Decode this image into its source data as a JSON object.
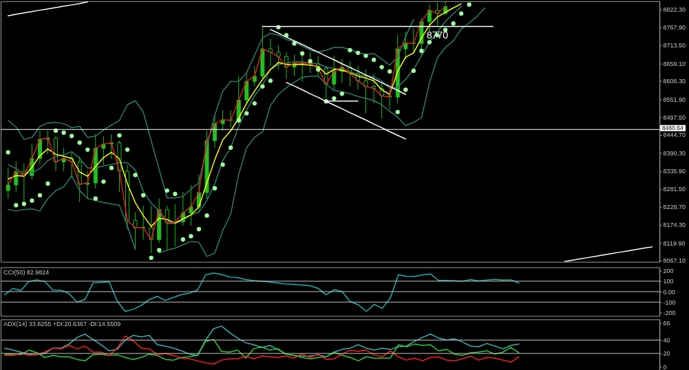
{
  "chart_data": [
    {
      "type": "candlestick",
      "categories": [
        null,
        null,
        null,
        null,
        null,
        null,
        null,
        null,
        null,
        null,
        null,
        null,
        null,
        null,
        null,
        null,
        null,
        null,
        null,
        null,
        null,
        null,
        null,
        null,
        null,
        null,
        null,
        null,
        null,
        null,
        null,
        null,
        null,
        null,
        null,
        null,
        null,
        null,
        null,
        null,
        null,
        null,
        null,
        null,
        null,
        null,
        null,
        null,
        null,
        null,
        null,
        null,
        null,
        null,
        null,
        null,
        null,
        null,
        null,
        null,
        null,
        null,
        null,
        null,
        null,
        null,
        null,
        null,
        null,
        null,
        null,
        null,
        null,
        null,
        null,
        null,
        null,
        null,
        null,
        null,
        null,
        null
      ],
      "ylim": [
        8063,
        8846
      ],
      "yticks": [
        {
          "value": 8822.3,
          "label": "8822.30"
        },
        {
          "value": 8767.9,
          "label": "8767.90"
        },
        {
          "value": 8713.5,
          "label": "8713.50"
        },
        {
          "value": 8659.1,
          "label": "8659.10"
        },
        {
          "value": 8606.3,
          "label": "8606.30"
        },
        {
          "value": 8551.9,
          "label": "8551.90"
        },
        {
          "value": 8497.5,
          "label": "8497.50"
        },
        {
          "value": 8444.7,
          "label": "8444.70"
        },
        {
          "value": 8390.3,
          "label": "8390.30"
        },
        {
          "value": 8335.9,
          "label": "8335.90"
        },
        {
          "value": 8281.5,
          "label": "8281.50"
        },
        {
          "value": 8228.7,
          "label": "8228.70"
        },
        {
          "value": 8174.3,
          "label": "8174.30"
        },
        {
          "value": 8119.9,
          "label": "8119.90"
        },
        {
          "value": 8067.1,
          "label": "8067.10"
        }
      ],
      "tick_labels": "y",
      "ref_lines": [
        {
          "axis": "y",
          "value": 8460.64,
          "label": "8460.64",
          "color": "#ffffff"
        }
      ],
      "series": [
        {
          "type": "candlestick",
          "color": "#20c020",
          "ohlc": [
            [
              8277,
              8345,
              8253,
              8294
            ],
            [
              8294,
              8365,
              8273,
              8335
            ],
            [
              8335,
              8359,
              8243,
              8322
            ],
            [
              8322,
              8417,
              8310,
              8374
            ],
            [
              8374,
              8457,
              8355,
              8431
            ],
            [
              8431,
              8457,
              8386,
              8435
            ],
            [
              8435,
              8441,
              8335,
              8363
            ],
            [
              8363,
              8406,
              8335,
              8374
            ],
            [
              8374,
              8392,
              8314,
              8363
            ],
            [
              8363,
              8380,
              8243,
              8296
            ],
            [
              8296,
              8335,
              8253,
              8300
            ],
            [
              8300,
              8447,
              8284,
              8404
            ],
            [
              8404,
              8441,
              8355,
              8417
            ],
            [
              8417,
              8447,
              8372,
              8421
            ],
            [
              8421,
              8427,
              8273,
              8335
            ],
            [
              8335,
              8355,
              8161,
              8188
            ],
            [
              8188,
              8212,
              8100,
              8165
            ],
            [
              8167,
              8232,
              8130,
              8165
            ],
            [
              8165,
              8232,
              8089,
              8130
            ],
            [
              8130,
              8253,
              8120,
              8220
            ],
            [
              8220,
              8232,
              8100,
              8181
            ],
            [
              8181,
              8237,
              8110,
              8183
            ],
            [
              8183,
              8273,
              8171,
              8210
            ],
            [
              8210,
              8294,
              8171,
              8228
            ],
            [
              8228,
              8325,
              8212,
              8271
            ],
            [
              8271,
              8457,
              8253,
              8427
            ],
            [
              8427,
              8502,
              8406,
              8478
            ],
            [
              8478,
              8519,
              8457,
              8490
            ],
            [
              8490,
              8519,
              8468,
              8488
            ],
            [
              8488,
              8621,
              8478,
              8549
            ],
            [
              8549,
              8631,
              8539,
              8605
            ],
            [
              8605,
              8652,
              8590,
              8621
            ],
            [
              8621,
              8770,
              8611,
              8703
            ],
            [
              8703,
              8734,
              8652,
              8693
            ],
            [
              8693,
              8713,
              8641,
              8680
            ],
            [
              8680,
              8693,
              8611,
              8648
            ],
            [
              8648,
              8686,
              8621,
              8660
            ],
            [
              8656,
              8682,
              8605,
              8660
            ],
            [
              8662,
              8693,
              8631,
              8658
            ],
            [
              8658,
              8682,
              8621,
              8644
            ],
            [
              8644,
              8652,
              8549,
              8597
            ],
            [
              8597,
              8682,
              8580,
              8635
            ],
            [
              8635,
              8672,
              8601,
              8648
            ],
            [
              8648,
              8666,
              8590,
              8629
            ],
            [
              8629,
              8652,
              8580,
              8607
            ],
            [
              8607,
              8641,
              8509,
              8590
            ],
            [
              8590,
              8627,
              8539,
              8584
            ],
            [
              8584,
              8601,
              8494,
              8562
            ],
            [
              8562,
              8580,
              8519,
              8558
            ],
            [
              8558,
              8744,
              8539,
              8703
            ],
            [
              8703,
              8754,
              8672,
              8721
            ],
            [
              8721,
              8764,
              8693,
              8719
            ],
            [
              8719,
              8795,
              8682,
              8785
            ],
            [
              8785,
              8836,
              8754,
              8819
            ],
            [
              8819,
              8842,
              8774,
              8809
            ],
            [
              8809,
              8844,
              8805,
              8830
            ],
            null,
            null,
            null,
            null,
            null,
            null,
            null,
            null,
            null,
            null,
            null,
            null,
            null,
            null,
            null,
            null,
            null,
            null,
            null,
            null,
            null,
            null,
            null,
            null,
            null,
            null
          ]
        },
        {
          "type": "line",
          "color": "#2e7d6b",
          "values": [
            8488,
            8468,
            8431,
            8437,
            8470,
            8480,
            8482,
            8478,
            8466,
            8470,
            8437,
            8441,
            8459,
            8474,
            8488,
            8535,
            8547,
            8513,
            8427,
            8341,
            8255,
            8255,
            8259,
            8282,
            8300,
            8412,
            8504,
            8576,
            8605,
            8605,
            8631,
            8684,
            8736,
            8750,
            8744,
            8731,
            8725,
            8711,
            8699,
            8693,
            8699,
            8707,
            8707,
            8701,
            8691,
            8686,
            8689,
            8672,
            8654,
            8678,
            8740,
            8791,
            null,
            null,
            null,
            null,
            null,
            null,
            null,
            null,
            null,
            null,
            null,
            null,
            null,
            null,
            null,
            null,
            null,
            null,
            null,
            null,
            null,
            null,
            null,
            null,
            null,
            null,
            null,
            null,
            null,
            null
          ]
        },
        {
          "type": "line",
          "color": "#2e7d6b",
          "values": [
            8355,
            8343,
            8327,
            8331,
            8343,
            8367,
            8380,
            8384,
            8394,
            8374,
            8345,
            8345,
            8351,
            8355,
            8361,
            8361,
            8339,
            8275,
            8239,
            8216,
            8177,
            8179,
            8188,
            8204,
            8212,
            8247,
            8298,
            8367,
            8406,
            8470,
            8519,
            8562,
            8594,
            8641,
            8656,
            8660,
            8664,
            8664,
            8660,
            8658,
            8648,
            8644,
            8641,
            8635,
            8625,
            8621,
            8619,
            8607,
            8584,
            8588,
            8611,
            8641,
            8682,
            8723,
            8754,
            8785,
            8809,
            8830,
            null,
            null,
            null,
            null,
            null,
            null,
            null,
            null,
            null,
            null,
            null,
            null,
            null,
            null,
            null,
            null,
            null,
            null,
            null,
            null,
            null,
            null,
            null,
            null
          ]
        },
        {
          "type": "line",
          "color": "#2e7d6b",
          "values": [
            8220,
            8216,
            8220,
            8222,
            8216,
            8253,
            8277,
            8288,
            8322,
            8277,
            8253,
            8247,
            8241,
            8237,
            8233,
            8171,
            8100,
            null,
            null,
            8089,
            8098,
            8104,
            8114,
            8124,
            8122,
            8079,
            8089,
            8157,
            8206,
            8325,
            8406,
            8437,
            8453,
            8533,
            8566,
            8586,
            8603,
            8617,
            8621,
            8621,
            8597,
            8578,
            8574,
            8568,
            8560,
            8554,
            8547,
            8535,
            8515,
            8498,
            8472,
            8482,
            8496,
            8601,
            8676,
            8707,
            8727,
            8762,
            8781,
            8801,
            8826,
            null,
            null,
            null,
            null,
            null,
            null,
            null,
            null,
            null,
            null,
            null,
            null,
            null,
            null,
            null,
            null,
            null,
            null,
            null,
            null,
            null
          ]
        },
        {
          "type": "line",
          "color": "#ffff00",
          "values": [
            8312,
            8322,
            8320,
            8347,
            8382,
            8402,
            8386,
            8380,
            8374,
            8333,
            8320,
            8349,
            8376,
            8392,
            8372,
            8298,
            8241,
            8202,
            8169,
            8194,
            8190,
            8179,
            8192,
            8204,
            8228,
            8300,
            8370,
            8429,
            8457,
            8494,
            8539,
            8576,
            8611,
            8641,
            8662,
            8656,
            8656,
            8656,
            8654,
            8650,
            8627,
            8641,
            8639,
            8631,
            8621,
            8615,
            8607,
            8580,
            8566,
            8635,
            8678,
            8691,
            8736,
            8774,
            8799,
            8813,
            8826,
            8838,
            null,
            null,
            null,
            null,
            null,
            null,
            null,
            null,
            null,
            null,
            null,
            null,
            null,
            null,
            null,
            null,
            null,
            null,
            null,
            null,
            null,
            null,
            null,
            null
          ]
        },
        {
          "type": "line",
          "color": "#e02020",
          "values": [
            8294,
            8335,
            8322,
            8374,
            8431,
            8435,
            8363,
            8374,
            8363,
            8296,
            8300,
            8404,
            8417,
            8421,
            8335,
            8188,
            8165,
            8165,
            8130,
            8220,
            8181,
            8181,
            8210,
            8228,
            8271,
            8427,
            8478,
            8490,
            8488,
            8549,
            8605,
            8621,
            8703,
            8693,
            8680,
            8648,
            8660,
            8660,
            8660,
            8644,
            8597,
            8635,
            8648,
            8629,
            8607,
            8590,
            8584,
            8562,
            8558,
            8703,
            8721,
            8719,
            8785,
            8819,
            8809,
            8830,
            null,
            null,
            null,
            null,
            null,
            null,
            null,
            null,
            null,
            null,
            null,
            null,
            null,
            null,
            null,
            null,
            null,
            null,
            null,
            null,
            null,
            null,
            null,
            null,
            null,
            null
          ]
        },
        {
          "type": "scatter",
          "marker": "circle",
          "color": "#a0ffa0",
          "values": [
            8392,
            8233,
            8237,
            8247,
            8263,
            8298,
            8457,
            8451,
            8441,
            8421,
            8400,
            8253,
            8304,
            8345,
            8443,
            8400,
            8324,
            8263,
            8075,
            8098,
            8277,
            8267,
            8130,
            8140,
            8161,
            8202,
            8284,
            8355,
            8406,
            8488,
            8509,
            8539,
            8590,
            8607,
            8768,
            8744,
            8719,
            8689,
            8666,
            8641,
            8545,
            8554,
            8568,
            8699,
            8691,
            8682,
            8670,
            8648,
            8635,
            8513,
            8580,
            8637,
            8697,
            8723,
            8744,
            8760,
            8779,
            8809,
            8836,
            null,
            null,
            null,
            null,
            null,
            null,
            null,
            null,
            null,
            null,
            null,
            null,
            null,
            null,
            null,
            null,
            null,
            null,
            null,
            null,
            null,
            null,
            null
          ]
        },
        {
          "type": "line",
          "color": "#ffffff",
          "values": [
            8802,
            8807,
            8811,
            8815,
            8819,
            8823,
            8827,
            8831,
            8835,
            8839,
            8844,
            null,
            null,
            null,
            null,
            null,
            null,
            null,
            null,
            null,
            null,
            null,
            null,
            null,
            null,
            null,
            null,
            null,
            null,
            null,
            null,
            null,
            null,
            null,
            null,
            null,
            null,
            null,
            null,
            null,
            null,
            null,
            null,
            null,
            null,
            null,
            null,
            null,
            null,
            null,
            null,
            null,
            null,
            null,
            null,
            null,
            null,
            null,
            null,
            null,
            null,
            null,
            null,
            null,
            null,
            null,
            null,
            null,
            null,
            null,
            null,
            null,
            null,
            null,
            null,
            null,
            null,
            null,
            null,
            null,
            null,
            null
          ]
        },
        {
          "type": "line",
          "color": "#ffffff",
          "name": "8770",
          "values": [
            null,
            null,
            null,
            null,
            null,
            null,
            null,
            null,
            null,
            null,
            null,
            null,
            null,
            null,
            null,
            null,
            null,
            null,
            null,
            null,
            null,
            null,
            null,
            null,
            null,
            null,
            null,
            null,
            null,
            null,
            null,
            null,
            8770,
            8770,
            8770,
            8770,
            8770,
            8770,
            8770,
            8770,
            8770,
            8770,
            8770,
            8770,
            8770,
            8770,
            8770,
            8770,
            8770,
            8770,
            8770,
            8770,
            8770,
            8770,
            8770,
            8770,
            8770,
            8770,
            8770,
            8770,
            8770,
            8770,
            null,
            null,
            null,
            null,
            null,
            null,
            null,
            null,
            null,
            null,
            null,
            null,
            null,
            null,
            null,
            null,
            null,
            null,
            null,
            null
          ]
        },
        {
          "type": "line",
          "color": "#ffffff",
          "values": [
            null,
            null,
            null,
            null,
            null,
            null,
            null,
            null,
            null,
            null,
            null,
            null,
            null,
            null,
            null,
            null,
            null,
            null,
            null,
            null,
            null,
            null,
            null,
            null,
            null,
            null,
            null,
            null,
            null,
            null,
            null,
            null,
            null,
            8761,
            8750,
            8738,
            8727,
            8716,
            8704,
            8693,
            8681,
            8670,
            8658,
            8647,
            8636,
            8624,
            8613,
            8601,
            8590,
            8578,
            8566,
            null,
            null,
            null,
            null,
            null,
            null,
            null,
            null,
            null,
            null,
            null,
            null,
            null,
            null,
            null,
            null,
            null,
            null,
            null,
            null,
            null,
            null,
            null,
            null,
            null,
            null,
            null,
            null,
            null,
            null,
            null
          ]
        },
        {
          "type": "line",
          "color": "#ffffff",
          "values": [
            null,
            null,
            null,
            null,
            null,
            null,
            null,
            null,
            null,
            null,
            null,
            null,
            null,
            null,
            null,
            null,
            null,
            null,
            null,
            null,
            null,
            null,
            null,
            null,
            null,
            null,
            null,
            null,
            null,
            null,
            null,
            null,
            null,
            null,
            null,
            8602,
            8591,
            8580,
            8568,
            8557,
            8545,
            8534,
            8523,
            8511,
            8500,
            8489,
            8477,
            8466,
            8454,
            8443,
            8432,
            null,
            null,
            null,
            null,
            null,
            null,
            null,
            null,
            null,
            null,
            null,
            null,
            null,
            null,
            null,
            null,
            null,
            null,
            null,
            null,
            null,
            null,
            null,
            null,
            null,
            null,
            null,
            null,
            null,
            null,
            null
          ]
        },
        {
          "type": "line",
          "color": "#ffffff",
          "values": [
            null,
            null,
            null,
            null,
            null,
            null,
            null,
            null,
            null,
            null,
            null,
            null,
            null,
            null,
            null,
            null,
            null,
            null,
            null,
            null,
            null,
            null,
            null,
            null,
            null,
            null,
            null,
            null,
            null,
            null,
            null,
            null,
            null,
            null,
            null,
            null,
            null,
            null,
            null,
            null,
            8546,
            8546,
            8546,
            8546,
            8546,
            null,
            null,
            null,
            null,
            null,
            null,
            null,
            null,
            null,
            null,
            null,
            null,
            null,
            null,
            null,
            null,
            null,
            null,
            null,
            null,
            null,
            null,
            null,
            null,
            null,
            null,
            null,
            null,
            null,
            null,
            null,
            null,
            null,
            null,
            null,
            null,
            null
          ]
        },
        {
          "type": "line",
          "color": "#ffffff",
          "values": [
            null,
            null,
            null,
            null,
            null,
            null,
            null,
            null,
            null,
            null,
            null,
            null,
            null,
            null,
            null,
            null,
            null,
            null,
            null,
            null,
            null,
            null,
            null,
            null,
            null,
            null,
            null,
            null,
            null,
            null,
            null,
            null,
            null,
            null,
            null,
            null,
            null,
            null,
            null,
            null,
            null,
            null,
            null,
            null,
            null,
            null,
            null,
            null,
            null,
            null,
            null,
            null,
            null,
            null,
            null,
            null,
            null,
            null,
            null,
            null,
            null,
            null,
            null,
            null,
            null,
            null,
            null,
            null,
            null,
            null,
            8064,
            8068,
            8072,
            8076,
            8080,
            8084,
            8088,
            8092,
            8096,
            8100,
            8104,
            8108
          ]
        }
      ]
    },
    {
      "type": "line",
      "title": "CCI(50) 82.9824",
      "categories": [
        null,
        null,
        null,
        null,
        null,
        null,
        null,
        null,
        null,
        null,
        null,
        null,
        null,
        null,
        null,
        null,
        null,
        null,
        null,
        null,
        null,
        null,
        null,
        null,
        null,
        null,
        null,
        null,
        null,
        null,
        null,
        null,
        null,
        null,
        null,
        null,
        null,
        null,
        null,
        null,
        null,
        null,
        null,
        null,
        null,
        null,
        null,
        null,
        null,
        null,
        null,
        null,
        null,
        null,
        null,
        null,
        null,
        null,
        null,
        null,
        null,
        null,
        null,
        null,
        null,
        null,
        null,
        null,
        null,
        null,
        null,
        null,
        null,
        null,
        null,
        null,
        null,
        null,
        null,
        null,
        null,
        null
      ],
      "ylim": [
        -233,
        233
      ],
      "yticks": [
        200,
        100,
        {
          "value": 0,
          "label": "0.00"
        },
        -100,
        -200
      ],
      "tick_labels": "y",
      "ref_lines": [
        {
          "axis": "y",
          "value": 100,
          "color": "#c8c8c8"
        },
        {
          "axis": "y",
          "value": 0,
          "color": "#c8c8c8"
        },
        {
          "axis": "y",
          "value": -100,
          "color": "#c8c8c8"
        }
      ],
      "series": [
        {
          "color": "#20b2aa",
          "values": [
            -30,
            30,
            10,
            95,
            113,
            96,
            15,
            14,
            -18,
            -100,
            -75,
            85,
            89,
            94,
            -90,
            -189,
            -170,
            -132,
            -75,
            -46,
            -84,
            -55,
            -28,
            -14,
            15,
            160,
            178,
            163,
            141,
            133,
            116,
            106,
            99,
            92,
            82,
            73,
            69,
            63,
            56,
            32,
            -30,
            18,
            0,
            -95,
            -125,
            -189,
            -122,
            -160,
            -60,
            162,
            147,
            145,
            160,
            170,
            107,
            107,
            104,
            100,
            116,
            102,
            110,
            117,
            111,
            113,
            83,
            null,
            null,
            null,
            null,
            null,
            null,
            null,
            null,
            null,
            null,
            null,
            null,
            null,
            null,
            null,
            null,
            null
          ]
        }
      ]
    },
    {
      "type": "line",
      "title": "ADX(14) 33.8255 +DI:20.6367 -DI:14.5509",
      "categories": [
        null,
        null,
        null,
        null,
        null,
        null,
        null,
        null,
        null,
        null,
        null,
        null,
        null,
        null,
        null,
        null,
        null,
        null,
        null,
        null,
        null,
        null,
        null,
        null,
        null,
        null,
        null,
        null,
        null,
        null,
        null,
        null,
        null,
        null,
        null,
        null,
        null,
        null,
        null,
        null,
        null,
        null,
        null,
        null,
        null,
        null,
        null,
        null,
        null,
        null,
        null,
        null,
        null,
        null,
        null,
        null,
        null,
        null,
        null,
        null,
        null,
        null,
        null,
        null,
        null,
        null,
        null,
        null,
        null,
        null,
        null,
        null,
        null,
        null,
        null,
        null,
        null,
        null,
        null,
        null,
        null,
        null
      ],
      "ylim": [
        -5,
        71
      ],
      "yticks": [
        66,
        40,
        20,
        0
      ],
      "tick_labels": "y",
      "ref_lines": [
        {
          "axis": "y",
          "value": 40,
          "color": "#c8c8c8"
        },
        {
          "axis": "y",
          "value": 20,
          "color": "#c8c8c8"
        }
      ],
      "series": [
        {
          "color": "#40b0b0",
          "values": [
            28,
            25,
            22,
            19,
            18,
            20,
            28,
            28,
            34,
            44,
            49,
            41,
            33,
            24,
            26,
            40,
            47,
            45,
            47,
            33,
            31,
            28,
            24,
            19,
            17,
            40,
            57,
            61,
            51,
            43,
            36,
            33,
            29,
            32,
            26,
            19,
            17,
            16,
            16,
            18,
            15,
            22,
            26,
            28,
            33,
            28,
            25,
            28,
            26,
            30,
            31,
            38,
            44,
            49,
            43,
            40,
            42,
            37,
            31,
            30,
            35,
            31,
            27,
            32,
            34,
            null,
            null,
            null,
            null,
            null,
            null,
            null,
            null,
            null,
            null,
            null,
            null,
            null,
            null,
            null,
            null,
            null
          ]
        },
        {
          "color": "#32cd32",
          "values": [
            19,
            19,
            18,
            25,
            21,
            14,
            17,
            15,
            15,
            11,
            9,
            18,
            19,
            17,
            18,
            14,
            11,
            14,
            19,
            17,
            11,
            10,
            14,
            15,
            17,
            38,
            41,
            23,
            22,
            25,
            13,
            27,
            30,
            25,
            27,
            19,
            17,
            14,
            12,
            14,
            15,
            22,
            17,
            14,
            9,
            15,
            13,
            13,
            13,
            33,
            30,
            34,
            32,
            33,
            24,
            26,
            19,
            17,
            21,
            22,
            24,
            19,
            22,
            29,
            21,
            null,
            null,
            null,
            null,
            null,
            null,
            null,
            null,
            null,
            null,
            null,
            null,
            null,
            null,
            null,
            null,
            null
          ]
        },
        {
          "color": "#ff2020",
          "values": [
            17,
            17,
            20,
            17,
            18,
            22,
            28,
            27,
            32,
            27,
            31,
            22,
            22,
            17,
            28,
            46,
            39,
            28,
            27,
            18,
            20,
            17,
            13,
            12,
            9,
            6,
            4,
            10,
            12,
            12,
            16,
            12,
            16,
            15,
            14,
            16,
            13,
            19,
            14,
            19,
            11,
            12,
            19,
            25,
            23,
            25,
            18,
            15,
            24,
            15,
            10,
            13,
            9,
            14,
            15,
            10,
            9,
            12,
            16,
            10,
            14,
            13,
            10,
            7,
            15,
            null,
            null,
            null,
            null,
            null,
            null,
            null,
            null,
            null,
            null,
            null,
            null,
            null,
            null,
            null,
            null,
            null
          ]
        }
      ]
    }
  ]
}
